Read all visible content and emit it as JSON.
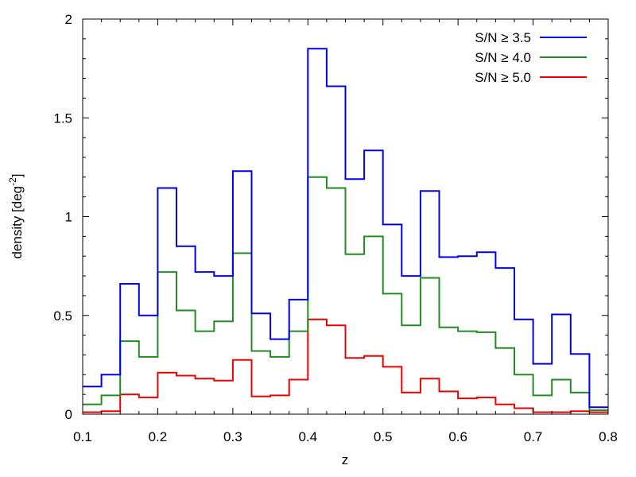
{
  "chart_data": {
    "type": "line",
    "step": true,
    "xlabel": "z",
    "ylabel": "density [deg",
    "ylabel_sup": "-2",
    "ylabel_close": "]",
    "xlim": [
      0.1,
      0.8
    ],
    "ylim": [
      0,
      2
    ],
    "xticks": [
      0.1,
      0.2,
      0.3,
      0.4,
      0.5,
      0.6,
      0.7,
      0.8
    ],
    "xtick_labels": [
      "0.1",
      "0.2",
      "0.3",
      "0.4",
      "0.5",
      "0.6",
      "0.7",
      "0.8"
    ],
    "yticks": [
      0,
      0.5,
      1,
      1.5,
      2
    ],
    "ytick_labels": [
      "0",
      "0.5",
      "1",
      "1.5",
      "2"
    ],
    "grid": false,
    "legend_position": "top-right",
    "bin_edges": [
      0.1,
      0.125,
      0.15,
      0.175,
      0.2,
      0.225,
      0.25,
      0.275,
      0.3,
      0.325,
      0.35,
      0.375,
      0.4,
      0.425,
      0.45,
      0.475,
      0.5,
      0.525,
      0.55,
      0.575,
      0.6,
      0.625,
      0.65,
      0.675,
      0.7,
      0.725,
      0.75,
      0.775,
      0.8
    ],
    "series": [
      {
        "name": "S/N ≥ 3.5",
        "color": "#0000ee",
        "values": [
          0.14,
          0.2,
          0.66,
          0.5,
          1.145,
          0.85,
          0.72,
          0.7,
          1.23,
          0.51,
          0.38,
          0.58,
          1.85,
          1.66,
          1.19,
          1.335,
          0.96,
          0.7,
          1.13,
          0.795,
          0.8,
          0.82,
          0.74,
          0.48,
          0.255,
          0.505,
          0.305,
          0.035
        ]
      },
      {
        "name": "S/N ≥ 4.0",
        "color": "#228b22",
        "values": [
          0.05,
          0.095,
          0.37,
          0.29,
          0.72,
          0.525,
          0.42,
          0.47,
          0.815,
          0.32,
          0.29,
          0.42,
          1.2,
          1.145,
          0.81,
          0.9,
          0.61,
          0.45,
          0.69,
          0.44,
          0.42,
          0.415,
          0.335,
          0.2,
          0.095,
          0.175,
          0.11,
          0.02
        ]
      },
      {
        "name": "S/N ≥ 5.0",
        "color": "#ee0000",
        "values": [
          0.01,
          0.015,
          0.1,
          0.085,
          0.21,
          0.195,
          0.18,
          0.17,
          0.275,
          0.09,
          0.095,
          0.175,
          0.48,
          0.45,
          0.285,
          0.295,
          0.24,
          0.11,
          0.18,
          0.115,
          0.08,
          0.085,
          0.05,
          0.03,
          0.01,
          0.01,
          0.015,
          0.01
        ]
      }
    ]
  }
}
